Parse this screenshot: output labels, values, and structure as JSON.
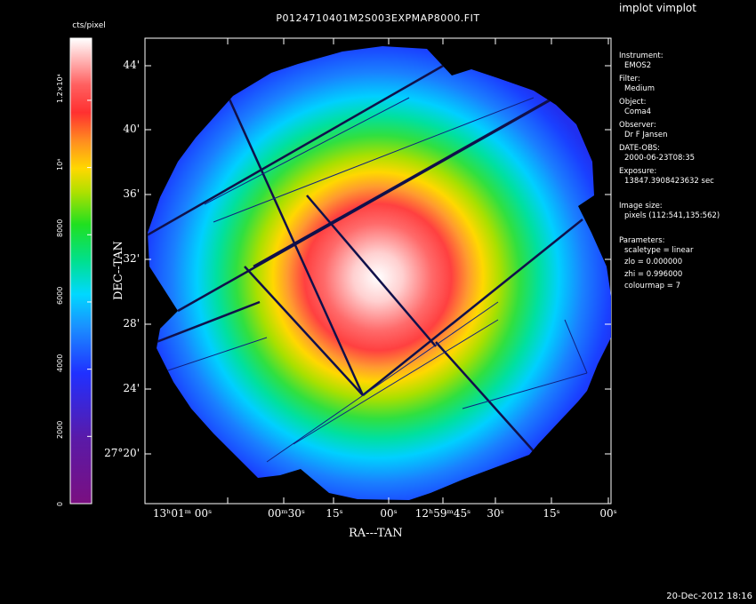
{
  "window": {
    "app_title": "implot vimplot",
    "timestamp": "20-Dec-2012 18:16"
  },
  "image": {
    "filename": "P0124710401M2S003EXPMAP8000.FIT"
  },
  "colorbar": {
    "unit_label": "cts/pixel",
    "ticks": [
      "0",
      "2000",
      "4000",
      "6000",
      "8000",
      "10⁴",
      "1.2×10⁴"
    ],
    "tick_values": [
      0,
      2000,
      4000,
      6000,
      8000,
      10000,
      12000
    ],
    "range": [
      0,
      13848
    ]
  },
  "axes": {
    "x_label": "RA---TAN",
    "y_label": "DEC--TAN",
    "x_ticks": [
      "13ʰ01ᵐ 00ˢ",
      "00ᵐ30ˢ",
      "15ˢ",
      "00ˢ",
      "12ʰ59ᵐ45ˢ",
      "30ˢ",
      "15ˢ",
      "00ˢ"
    ],
    "y_ticks": [
      "44'",
      "40'",
      "36'",
      "32'",
      "28'",
      "24'",
      "27°20'"
    ]
  },
  "info_panel": {
    "instrument_label": "Instrument:",
    "instrument": "EMOS2",
    "filter_label": "Filter:",
    "filter": "Medium",
    "object_label": "Object:",
    "object": "Coma4",
    "observer_label": "Observer:",
    "observer": "Dr F Jansen",
    "date_label": "DATE-OBS:",
    "date": "2000-06-23T08:35",
    "exposure_label": "Exposure:",
    "exposure": "13847.3908423632 sec",
    "size_label": "Image size:",
    "size": "pixels (112:541,135:562)",
    "params_label": "Parameters:",
    "scaletype": "scaletype = linear",
    "zlo": "zlo = 0.000000",
    "zhi": "zhi = 0.996000",
    "colourmap": "colourmap =   7"
  },
  "colormap": "rainbow-to-white"
}
